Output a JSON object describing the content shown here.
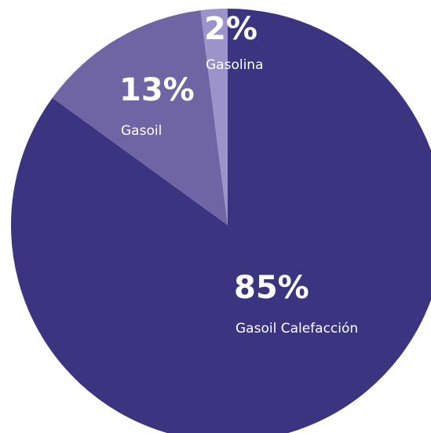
{
  "chart_data": {
    "type": "pie",
    "categories": [
      "Gasoil Calefacción",
      "Gasoil",
      "Gasolina"
    ],
    "values": [
      85,
      13,
      2
    ],
    "value_labels": [
      "85%",
      "13%",
      "2%"
    ],
    "colors": [
      "#3b3480",
      "#6f64a4",
      "#9d93cb"
    ]
  }
}
